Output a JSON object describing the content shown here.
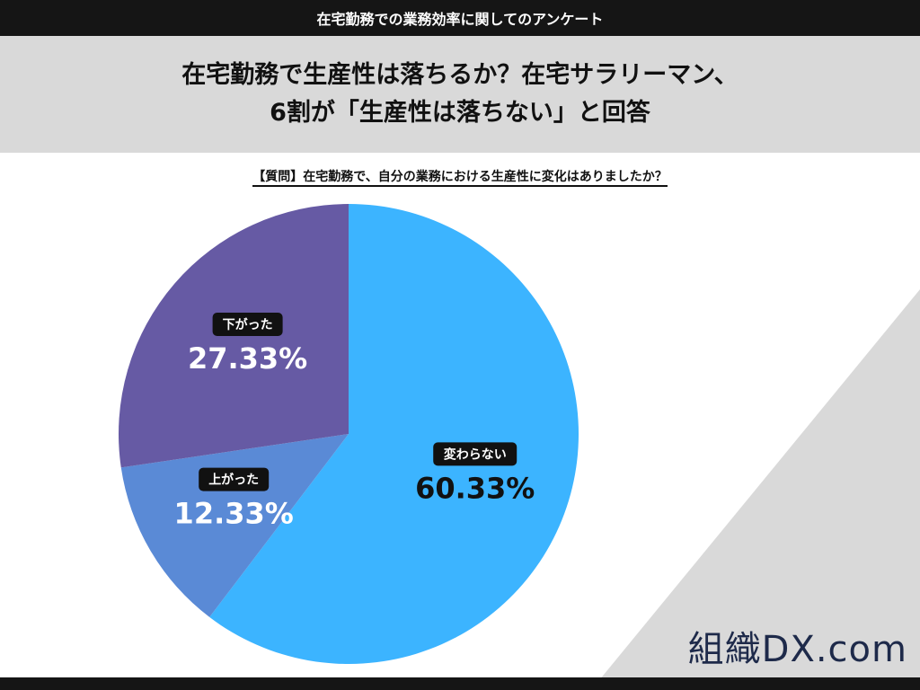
{
  "header": {
    "top_label": "在宅勤務での業務効率に関してのアンケート",
    "title_line1": "在宅勤務で生産性は落ちるか？在宅サラリーマン、",
    "title_line2": "6割が「生産性は落ちない」と回答",
    "question": "【質問】在宅勤務で、自分の業務における生産性に変化はありましたか？"
  },
  "logo": {
    "text": "組織DX.com"
  },
  "colors": {
    "dark": "#151515",
    "band": "#d9d9d9",
    "deco": "#d9d9d9"
  },
  "chart_data": {
    "type": "pie",
    "start": "12 o'clock",
    "direction": "clockwise",
    "categories": [
      "変わらない",
      "上がった",
      "下がった"
    ],
    "values": [
      60.33,
      12.33,
      27.33
    ],
    "value_labels": [
      "60.33%",
      "12.33%",
      "27.33%"
    ],
    "colors": [
      "#3cb4ff",
      "#5a8ad6",
      "#665aa4"
    ],
    "legend": "none"
  }
}
